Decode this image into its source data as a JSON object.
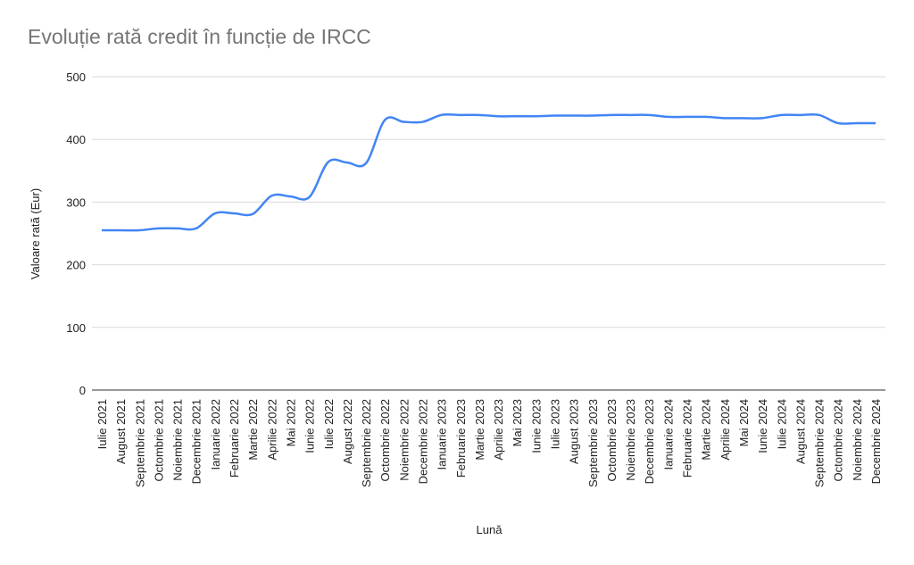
{
  "chart_data": {
    "type": "line",
    "title": "Evoluție rată credit în funcție de IRCC",
    "xlabel": "Lună",
    "ylabel": "Valoare rată (Eur)",
    "ylim": [
      0,
      500
    ],
    "yticks": [
      0,
      100,
      200,
      300,
      400,
      500
    ],
    "grid": true,
    "line_color": "#4285f4",
    "categories": [
      "Iulie 2021",
      "August 2021",
      "Septembrie 2021",
      "Octombrie 2021",
      "Noiembrie 2021",
      "Decembrie 2021",
      "Ianuarie 2022",
      "Februarie 2022",
      "Martie 2022",
      "Aprilie 2022",
      "Mai 2022",
      "Iunie 2022",
      "Iulie 2022",
      "August 2022",
      "Septembrie 2022",
      "Octombrie 2022",
      "Noiembrie 2022",
      "Decembrie 2022",
      "Ianuarie 2023",
      "Februarie 2023",
      "Martie 2023",
      "Aprilie 2023",
      "Mai 2023",
      "Iunie 2023",
      "Iulie 2023",
      "August 2023",
      "Septembrie 2023",
      "Octombrie 2023",
      "Noiembrie 2023",
      "Decembrie 2023",
      "Ianuarie 2024",
      "Februarie 2024",
      "Martie 2024",
      "Aprilie 2024",
      "Mai 2024",
      "Iunie 2024",
      "Iulie 2024",
      "August 2024",
      "Septembrie 2024",
      "Octombrie 2024",
      "Noiembrie 2024",
      "Decembrie 2024"
    ],
    "values": [
      255,
      255,
      255,
      258,
      258,
      258,
      282,
      282,
      281,
      310,
      309,
      308,
      364,
      363,
      362,
      431,
      428,
      428,
      439,
      439,
      439,
      437,
      437,
      437,
      438,
      438,
      438,
      439,
      439,
      439,
      436,
      436,
      436,
      434,
      434,
      434,
      439,
      439,
      439,
      426,
      426,
      426
    ]
  }
}
